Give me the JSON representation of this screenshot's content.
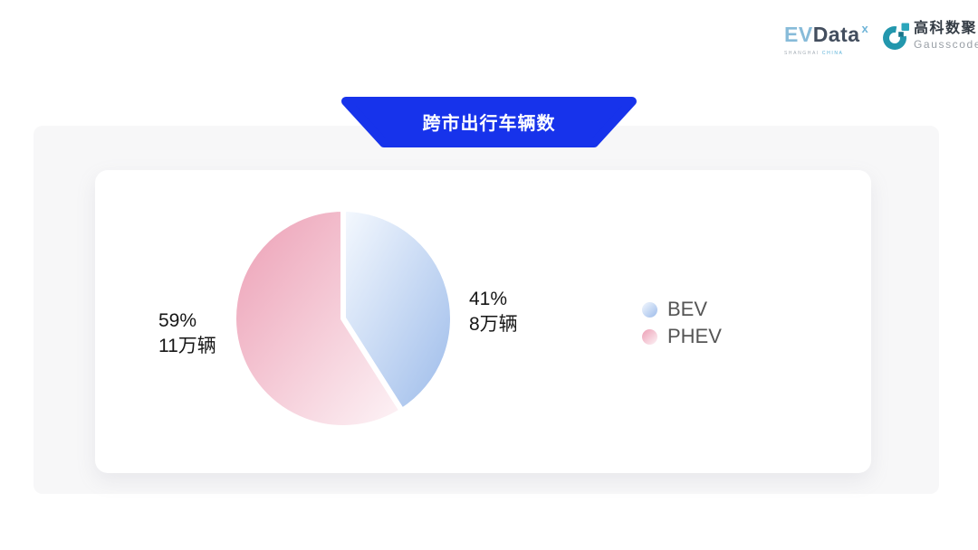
{
  "logos": {
    "evdata": {
      "ev": "EV",
      "data": "Data",
      "sup": "x",
      "sub_left": "SHANGHAI",
      "sub_right": "CHINA"
    },
    "gausscode": {
      "cn": "高科数聚",
      "en": "Gausscode",
      "icon_color": "#2397ad",
      "icon_block_color": "#2ba6bb",
      "icon_inner_color": "#17758a"
    }
  },
  "banner": {
    "title": "跨市出行车辆数",
    "bg": "#1733EB"
  },
  "chart_data": {
    "type": "pie",
    "title": "跨市出行车辆数",
    "unit": "万辆",
    "start_angle": "12-oclock",
    "clockwise": true,
    "legend_position": "right-middle",
    "slice_border_color": "#ffffff",
    "slice_border_width": 6,
    "series": [
      {
        "name": "BEV",
        "value": 8,
        "percent": 41,
        "percent_label": "41%",
        "value_label": "8万辆",
        "gradient": [
          "#f5f9fe",
          "#9cbbea"
        ]
      },
      {
        "name": "PHEV",
        "value": 11,
        "percent": 59,
        "percent_label": "59%",
        "value_label": "11万辆",
        "gradient": [
          "#ec9eb4",
          "#fdf4f7"
        ]
      }
    ]
  }
}
